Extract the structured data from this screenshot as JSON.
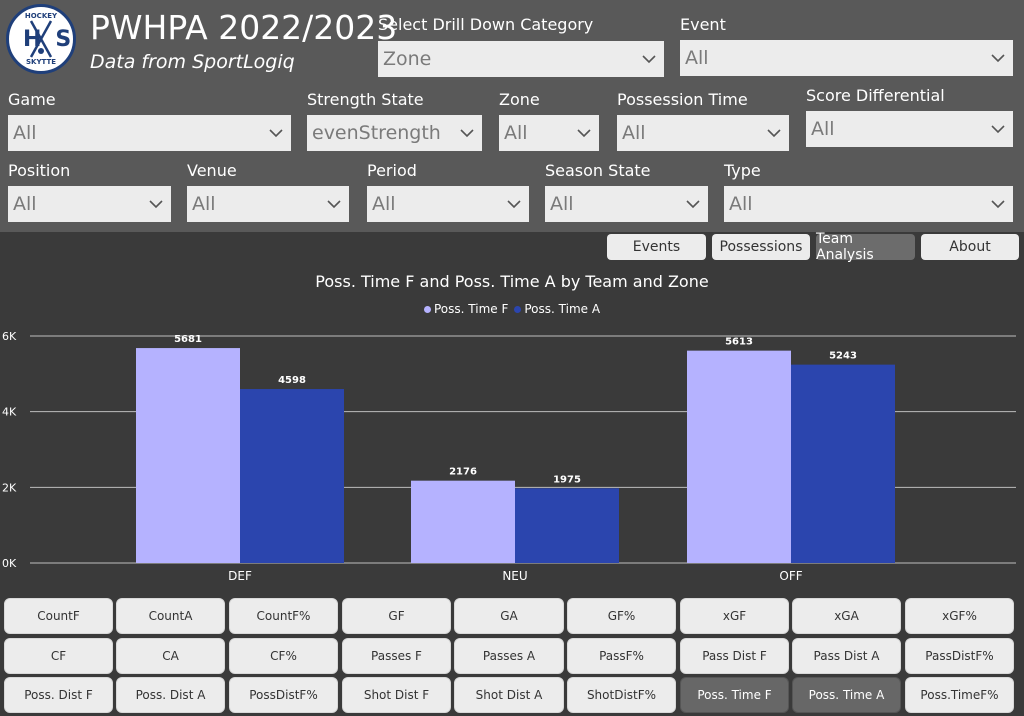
{
  "header": {
    "title": "PWHPA 2022/2023",
    "subtitle": "Data from SportLogiq",
    "logo": {
      "top_text": "HOCKEY",
      "mid_text": "HS",
      "bottom_text": "SKYTTE"
    }
  },
  "filters": {
    "drill": {
      "label": "Select Drill Down Category",
      "value": "Zone"
    },
    "event": {
      "label": "Event",
      "value": "All"
    },
    "game": {
      "label": "Game",
      "value": "All"
    },
    "strength": {
      "label": "Strength State",
      "value": "evenStrength"
    },
    "zone": {
      "label": "Zone",
      "value": "All"
    },
    "possession_time": {
      "label": "Possession Time",
      "value": "All"
    },
    "score_diff": {
      "label": "Score Differential",
      "value": "All"
    },
    "position": {
      "label": "Position",
      "value": "All"
    },
    "venue": {
      "label": "Venue",
      "value": "All"
    },
    "period": {
      "label": "Period",
      "value": "All"
    },
    "season_state": {
      "label": "Season State",
      "value": "All"
    },
    "type": {
      "label": "Type",
      "value": "All"
    }
  },
  "tabs": [
    "Events",
    "Possessions",
    "Team Analysis",
    "About"
  ],
  "active_tab": "Team Analysis",
  "chart_data": {
    "type": "bar",
    "title": "Poss. Time F and Poss. Time A by Team and Zone",
    "categories": [
      "DEF",
      "NEU",
      "OFF"
    ],
    "series": [
      {
        "name": "Poss. Time F",
        "values": [
          5681,
          2176,
          5613
        ],
        "color": "#b5b2ff"
      },
      {
        "name": "Poss. Time A",
        "values": [
          4598,
          1975,
          5243
        ],
        "color": "#2b45ae"
      }
    ],
    "ylim": [
      0,
      6000
    ],
    "yticks": [
      "0K",
      "2K",
      "4K",
      "6K"
    ],
    "ytick_values": [
      0,
      2000,
      4000,
      6000
    ],
    "grid": true,
    "legend": "top-center",
    "data_labels": true
  },
  "metric_buttons": [
    [
      "CountF",
      "CountA",
      "CountF%",
      "GF",
      "GA",
      "GF%",
      "xGF",
      "xGA",
      "xGF%"
    ],
    [
      "CF",
      "CA",
      "CF%",
      "Passes F",
      "Passes A",
      "PassF%",
      "Pass Dist F",
      "Pass Dist A",
      "PassDistF%"
    ],
    [
      "Poss. Dist F",
      "Poss. Dist A",
      "PossDistF%",
      "Shot Dist F",
      "Shot Dist A",
      "ShotDistF%",
      "Poss. Time F",
      "Poss. Time A",
      "Poss.TimeF%"
    ]
  ],
  "active_buttons": [
    "Poss. Time F",
    "Poss. Time A"
  ],
  "colors": {
    "header_bg": "#595959",
    "page_bg": "#3a3a3a",
    "dropdown_bg": "#ececec"
  }
}
